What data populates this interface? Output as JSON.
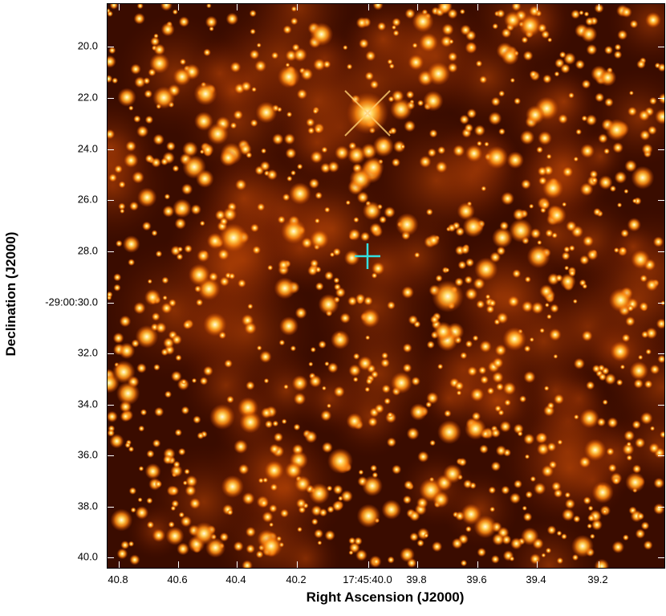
{
  "x_axis": {
    "title": "Right Ascension (J2000)",
    "tick_labels": [
      "40.8",
      "40.6",
      "40.4",
      "40.2",
      "17:45:40.0",
      "39.8",
      "39.6",
      "39.4",
      "39.2"
    ]
  },
  "y_axis": {
    "title": "Declination (J2000)",
    "tick_labels": [
      "20.0",
      "22.0",
      "24.0",
      "26.0",
      "28.0",
      "-29:00:30.0",
      "32.0",
      "34.0",
      "36.0",
      "38.0",
      "40.0"
    ]
  },
  "colors": {
    "background": "#2a0600",
    "star_core": "#ffffff",
    "star_glow": "#ff9a1a",
    "marker": "#33e0e0"
  },
  "image": {
    "colormap": "hot",
    "marker": "cross-hair-icon"
  }
}
